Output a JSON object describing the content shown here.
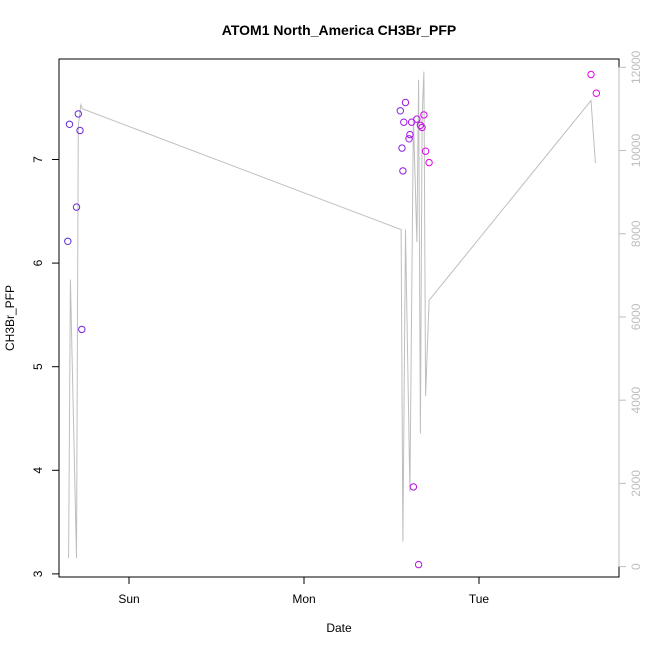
{
  "chart_data": {
    "type": "scatter",
    "title": "ATOM1 North_America CH3Br_PFP",
    "xlabel": "Date",
    "ylabel": "CH3Br_PFP",
    "x_ticks": [
      {
        "label": "Sun",
        "value": 1.0
      },
      {
        "label": "Mon",
        "value": 2.0
      },
      {
        "label": "Tue",
        "value": 3.0
      }
    ],
    "xlim": [
      0.6,
      3.8
    ],
    "ylim": [
      2.97,
      7.97
    ],
    "y_ticks": [
      3,
      4,
      5,
      6,
      7
    ],
    "y2lim": [
      -250,
      12200
    ],
    "y2_ticks": [
      0,
      2000,
      4000,
      6000,
      8000,
      10000,
      12000
    ],
    "colors": {
      "line": "#bebebe",
      "right_axis": "#bebebe",
      "point_start": "#5a2fd6",
      "point_end": "#ee00ee"
    },
    "points": [
      {
        "x": 0.65,
        "y": 6.21
      },
      {
        "x": 0.66,
        "y": 7.34
      },
      {
        "x": 0.7,
        "y": 6.54
      },
      {
        "x": 0.71,
        "y": 7.44
      },
      {
        "x": 0.72,
        "y": 7.28
      },
      {
        "x": 0.73,
        "y": 5.36
      },
      {
        "x": 2.55,
        "y": 7.47
      },
      {
        "x": 2.56,
        "y": 7.11
      },
      {
        "x": 2.565,
        "y": 6.89
      },
      {
        "x": 2.57,
        "y": 7.36
      },
      {
        "x": 2.58,
        "y": 7.55
      },
      {
        "x": 2.6,
        "y": 7.2
      },
      {
        "x": 2.605,
        "y": 7.24
      },
      {
        "x": 2.615,
        "y": 7.36
      },
      {
        "x": 2.625,
        "y": 3.84
      },
      {
        "x": 2.645,
        "y": 7.39
      },
      {
        "x": 2.655,
        "y": 3.09
      },
      {
        "x": 2.665,
        "y": 7.33
      },
      {
        "x": 2.675,
        "y": 7.31
      },
      {
        "x": 2.685,
        "y": 7.43
      },
      {
        "x": 2.695,
        "y": 7.08
      },
      {
        "x": 2.715,
        "y": 6.97
      },
      {
        "x": 3.64,
        "y": 7.82
      },
      {
        "x": 3.67,
        "y": 7.64
      }
    ],
    "line_series": {
      "x": [
        0.655,
        0.665,
        0.7,
        0.71,
        0.725,
        0.735,
        2.555,
        2.565,
        2.58,
        2.605,
        2.625,
        2.645,
        2.655,
        2.665,
        2.675,
        2.685,
        2.695,
        2.715,
        3.64,
        3.665
      ],
      "y": [
        200,
        6900,
        200,
        10600,
        11100,
        11000,
        8100,
        600,
        8100,
        1800,
        10800,
        7800,
        11700,
        3200,
        10800,
        11900,
        4100,
        6400,
        11200,
        9700
      ]
    }
  }
}
